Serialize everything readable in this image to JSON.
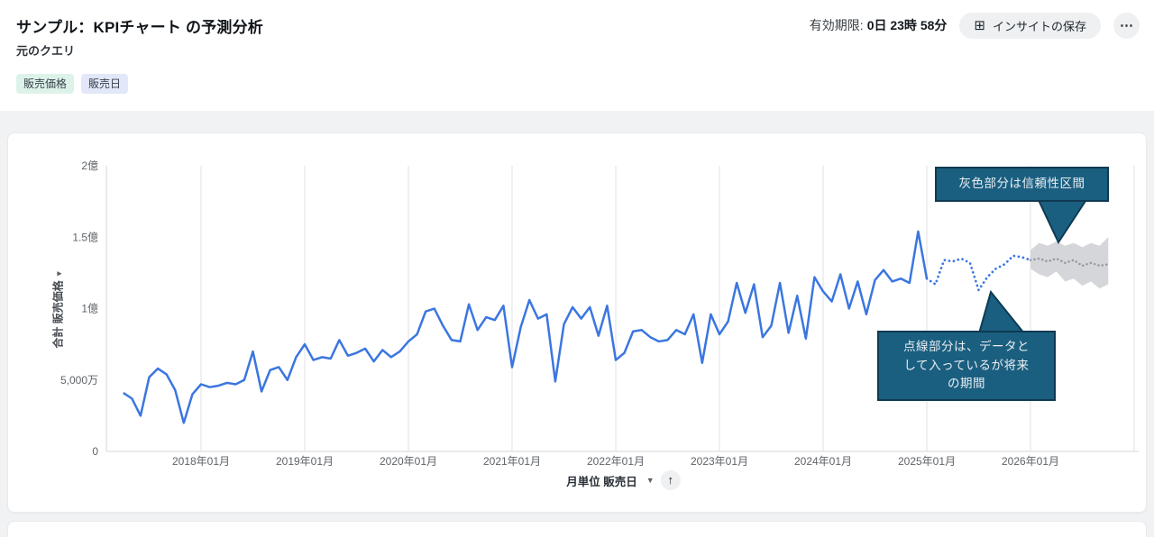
{
  "header": {
    "title": "サンプル：KPIチャート の予測分析",
    "subtitle": "元のクエリ",
    "tags": [
      {
        "label": "販売価格"
      },
      {
        "label": "販売日"
      }
    ],
    "expiry_label": "有効期限:",
    "expiry_value": "0日 23時 58分",
    "save_button_label": "インサイトの保存",
    "save_button_icon": "⊞",
    "more_button_icon": "⋯"
  },
  "colors": {
    "line_blue": "#3b76e0",
    "forecast_gray_line": "#97999d",
    "confidence_band_gray": "#d4d6d9",
    "annotation_bg": "#1b5f80",
    "annotation_border": "#0e3a52",
    "tag_green_bg": "#ddf3e9",
    "tag_blue_bg": "#e2e7f9"
  },
  "chart_data": {
    "type": "line",
    "title": "",
    "ylabel": "合計 販売価格",
    "xlabel": "販売日 (月単位)",
    "value_unit": "百万円 (1億 = 100)",
    "x_range": [
      "2017-04",
      "2026-10"
    ],
    "ylim_million": [
      0,
      200
    ],
    "grid": "vertical-only",
    "legend": "none",
    "y_ticks": [
      "0",
      "5,000万",
      "1億",
      "1.5億",
      "2億"
    ],
    "y_tick_values_million": [
      0,
      50,
      100,
      150,
      200
    ],
    "x_ticks": [
      "2018年01月",
      "2019年01月",
      "2020年01月",
      "2021年01月",
      "2022年01月",
      "2023年01月",
      "2024年01月",
      "2025年01月",
      "2026年01月"
    ],
    "series": [
      {
        "name": "actual",
        "style": "solid",
        "start": "2017-04",
        "values": [
          41,
          37,
          25,
          52,
          58,
          54,
          43,
          20,
          40,
          47,
          45,
          46,
          48,
          47,
          50,
          70,
          42,
          57,
          59,
          50,
          66,
          75,
          64,
          66,
          65,
          78,
          67,
          69,
          72,
          63,
          71,
          66,
          70,
          77,
          82,
          98,
          100,
          88,
          78,
          77,
          103,
          85,
          94,
          92,
          102,
          59,
          87,
          106,
          93,
          96,
          49,
          89,
          101,
          93,
          101,
          81,
          102,
          64,
          69,
          84,
          85,
          80,
          77,
          78,
          85,
          82,
          96,
          62,
          96,
          82,
          91,
          118,
          97,
          117,
          80,
          88,
          118,
          83,
          109,
          79,
          122,
          112,
          105,
          124,
          100,
          119,
          96,
          120,
          127,
          119,
          121,
          118,
          154,
          121
        ]
      },
      {
        "name": "actual_future",
        "style": "dotted",
        "start": "2025-01",
        "values": [
          121,
          117,
          134,
          133,
          135,
          132,
          113,
          122,
          128,
          131,
          137,
          136,
          134
        ]
      },
      {
        "name": "forecast",
        "style": "dotted-with-band",
        "start": "2026-01",
        "median": [
          134,
          135,
          133,
          135,
          132,
          134,
          130,
          132,
          130,
          131
        ],
        "upper": [
          141,
          146,
          144,
          147,
          144,
          146,
          143,
          146,
          144,
          150
        ],
        "lower": [
          128,
          124,
          122,
          126,
          119,
          121,
          116,
          119,
          114,
          117
        ]
      }
    ],
    "x_axis_control": {
      "label": "月単位 販売日",
      "sort_icon": "↑"
    },
    "annotations": [
      {
        "id": "confidence",
        "text": "灰色部分は信頼性区間"
      },
      {
        "id": "dotted",
        "text": "点線部分は、データと\nして入っているが将来\nの期間"
      }
    ]
  }
}
